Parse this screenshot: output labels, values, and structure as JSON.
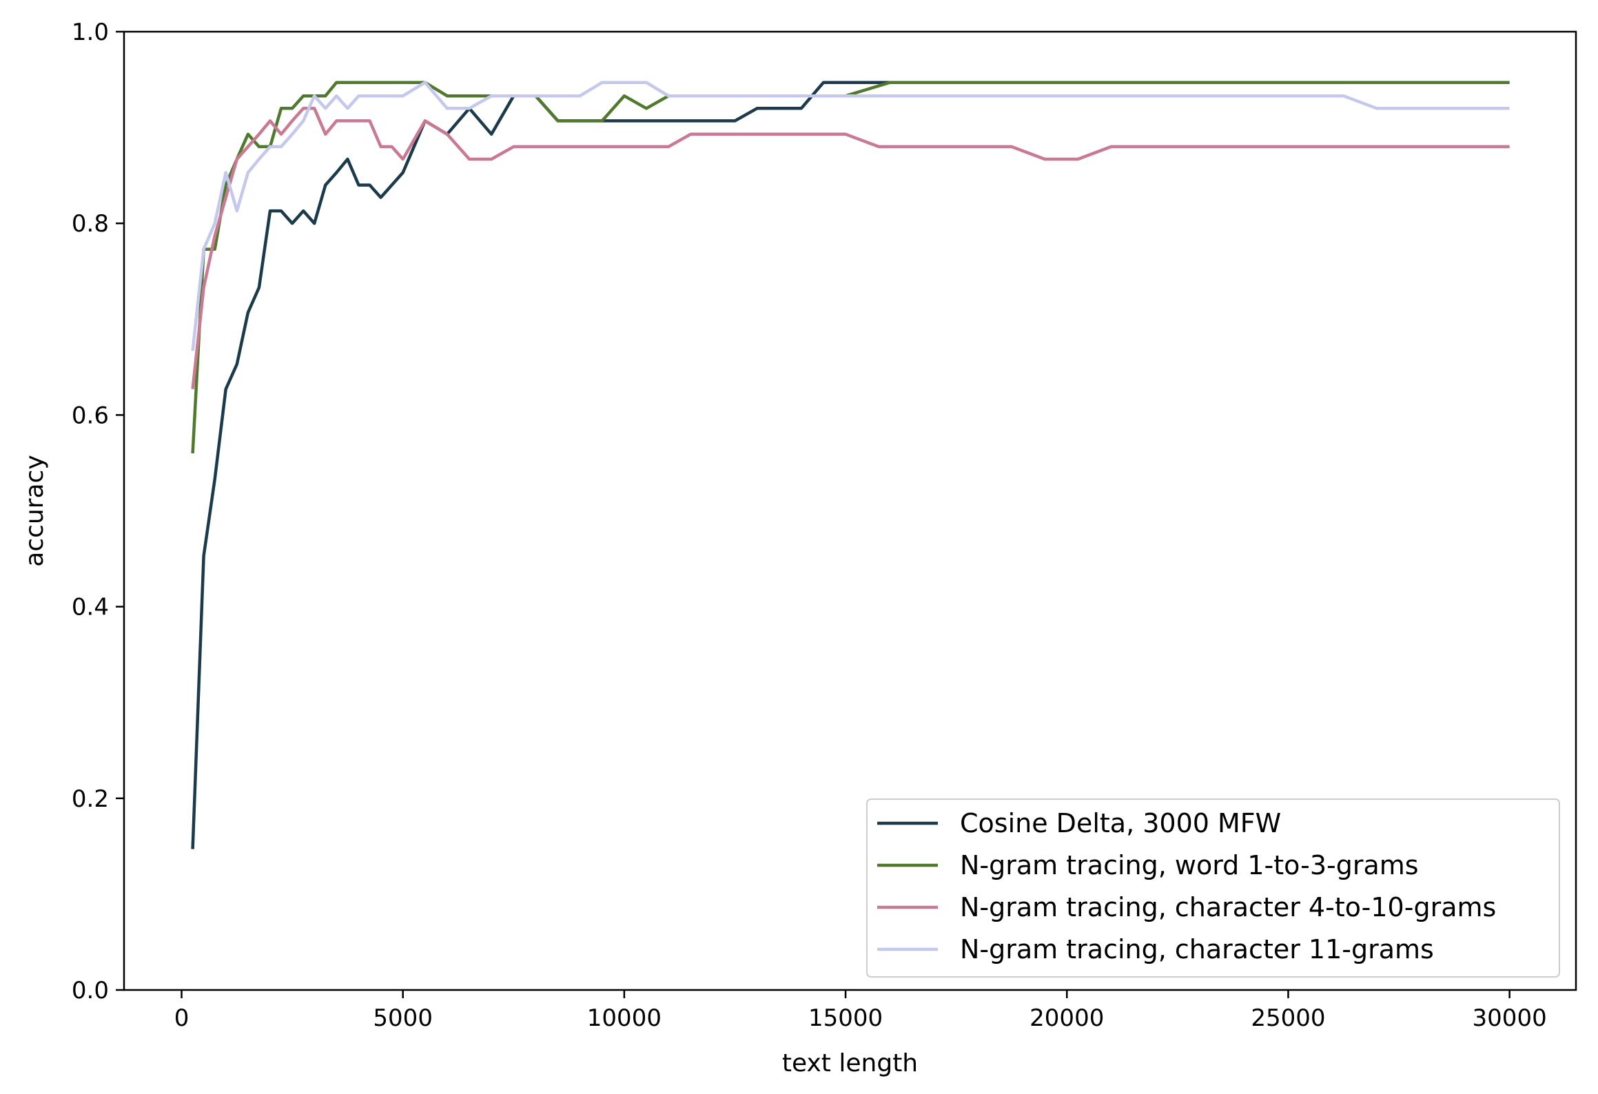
{
  "chart_data": {
    "type": "line",
    "xlabel": "text length",
    "ylabel": "accuracy",
    "xlim": [
      -1300,
      31500
    ],
    "ylim": [
      0.0,
      1.0
    ],
    "xticks": [
      0,
      5000,
      10000,
      15000,
      20000,
      25000,
      30000
    ],
    "yticks": [
      0.0,
      0.2,
      0.4,
      0.6,
      0.8,
      1.0
    ],
    "xtick_labels": [
      "0",
      "5000",
      "10000",
      "15000",
      "20000",
      "25000",
      "30000"
    ],
    "ytick_labels": [
      "0.0",
      "0.2",
      "0.4",
      "0.6",
      "0.8",
      "1.0"
    ],
    "grid": false,
    "legend_position": "lower-right",
    "series": [
      {
        "name": "Cosine Delta, 3000 MFW",
        "color": "#1b3a4b",
        "x": [
          250,
          500,
          750,
          1000,
          1250,
          1500,
          1750,
          2000,
          2250,
          2500,
          2750,
          3000,
          3250,
          3500,
          3750,
          4000,
          4250,
          4500,
          4750,
          5000,
          5250,
          5500,
          6000,
          6500,
          7000,
          7500,
          8000,
          8500,
          9000,
          9500,
          10000,
          11000,
          12000,
          12500,
          13000,
          13500,
          14000,
          14500,
          15000,
          15500,
          16000,
          20000,
          25000,
          30000
        ],
        "y": [
          0.147,
          0.453,
          0.533,
          0.627,
          0.653,
          0.707,
          0.733,
          0.813,
          0.813,
          0.8,
          0.813,
          0.8,
          0.84,
          0.853,
          0.867,
          0.84,
          0.84,
          0.827,
          0.84,
          0.853,
          0.88,
          0.907,
          0.893,
          0.92,
          0.893,
          0.933,
          0.933,
          0.907,
          0.907,
          0.907,
          0.907,
          0.907,
          0.907,
          0.907,
          0.92,
          0.92,
          0.92,
          0.947,
          0.947,
          0.947,
          0.947,
          0.947,
          0.947,
          0.947
        ]
      },
      {
        "name": "N-gram tracing, word 1-to-3-grams",
        "color": "#4f7a2d",
        "x": [
          250,
          500,
          750,
          1000,
          1250,
          1500,
          1750,
          2000,
          2250,
          2500,
          2750,
          3000,
          3250,
          3500,
          4000,
          4500,
          5000,
          5500,
          6000,
          6500,
          7000,
          7500,
          8000,
          8500,
          9000,
          9500,
          10000,
          10500,
          11000,
          12000,
          13000,
          14000,
          15000,
          15500,
          16000,
          20000,
          25000,
          30000
        ],
        "y": [
          0.56,
          0.773,
          0.773,
          0.84,
          0.867,
          0.893,
          0.88,
          0.88,
          0.92,
          0.92,
          0.933,
          0.933,
          0.933,
          0.947,
          0.947,
          0.947,
          0.947,
          0.947,
          0.933,
          0.933,
          0.933,
          0.933,
          0.933,
          0.907,
          0.907,
          0.907,
          0.933,
          0.92,
          0.933,
          0.933,
          0.933,
          0.933,
          0.933,
          0.94,
          0.947,
          0.947,
          0.947,
          0.947
        ]
      },
      {
        "name": "N-gram tracing, character 4-to-10-grams",
        "color": "#c97a92",
        "x": [
          250,
          500,
          750,
          1000,
          1250,
          1500,
          1750,
          2000,
          2250,
          2500,
          2750,
          3000,
          3250,
          3500,
          3750,
          4000,
          4250,
          4500,
          4750,
          5000,
          5500,
          6000,
          6500,
          7000,
          7500,
          8000,
          9000,
          10000,
          11000,
          11500,
          12000,
          13000,
          14000,
          15000,
          15750,
          17000,
          18750,
          19500,
          20250,
          21000,
          22000,
          25000,
          30000
        ],
        "y": [
          0.627,
          0.733,
          0.787,
          0.827,
          0.867,
          0.88,
          0.893,
          0.907,
          0.893,
          0.907,
          0.92,
          0.92,
          0.893,
          0.907,
          0.907,
          0.907,
          0.907,
          0.88,
          0.88,
          0.867,
          0.907,
          0.893,
          0.867,
          0.867,
          0.88,
          0.88,
          0.88,
          0.88,
          0.88,
          0.893,
          0.893,
          0.893,
          0.893,
          0.893,
          0.88,
          0.88,
          0.88,
          0.867,
          0.867,
          0.88,
          0.88,
          0.88,
          0.88
        ]
      },
      {
        "name": "N-gram tracing, character 11-grams",
        "color": "#c3c8ec",
        "x": [
          250,
          500,
          750,
          1000,
          1250,
          1500,
          1750,
          2000,
          2250,
          2500,
          2750,
          3000,
          3250,
          3500,
          3750,
          4000,
          4500,
          5000,
          5500,
          6000,
          6500,
          7000,
          7500,
          8000,
          9000,
          9500,
          10000,
          10500,
          11000,
          12000,
          14000,
          16000,
          20000,
          25000,
          26250,
          27000,
          30000
        ],
        "y": [
          0.667,
          0.773,
          0.8,
          0.853,
          0.813,
          0.853,
          0.867,
          0.88,
          0.88,
          0.893,
          0.907,
          0.933,
          0.92,
          0.933,
          0.92,
          0.933,
          0.933,
          0.933,
          0.947,
          0.92,
          0.92,
          0.933,
          0.933,
          0.933,
          0.933,
          0.947,
          0.947,
          0.947,
          0.933,
          0.933,
          0.933,
          0.933,
          0.933,
          0.933,
          0.933,
          0.92,
          0.92
        ]
      }
    ]
  }
}
